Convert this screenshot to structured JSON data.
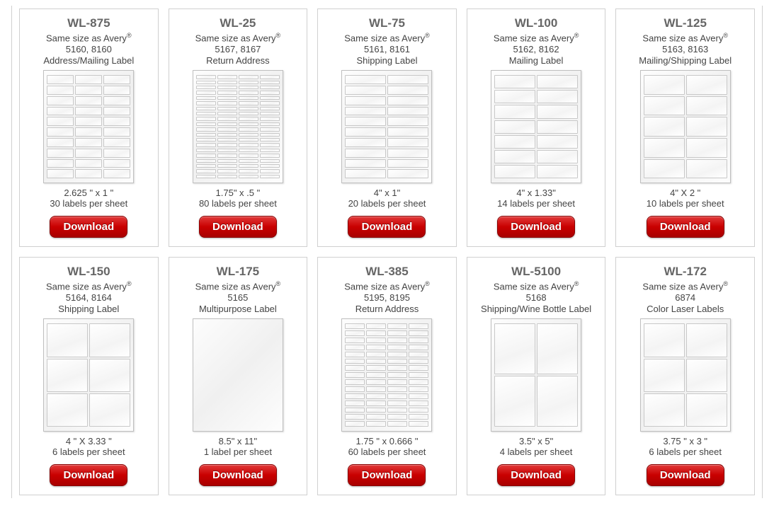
{
  "download_label": "Download",
  "same_size_prefix": "Same size as Avery",
  "products": [
    {
      "sku": "WL-875",
      "avery_codes": "5160, 8160",
      "type_label": "Address/Mailing Label",
      "dimensions": "2.625 \" x 1 \"",
      "per_sheet": "30 labels per sheet",
      "layout": {
        "cols": 3,
        "rows": 10
      }
    },
    {
      "sku": "WL-25",
      "avery_codes": "5167, 8167",
      "type_label": "Return Address",
      "dimensions": "1.75\" x .5 \"",
      "per_sheet": "80 labels per sheet",
      "layout": {
        "cols": 4,
        "rows": 20
      }
    },
    {
      "sku": "WL-75",
      "avery_codes": "5161, 8161",
      "type_label": "Shipping Label",
      "dimensions": "4\" x 1\"",
      "per_sheet": "20 labels per sheet",
      "layout": {
        "cols": 2,
        "rows": 10
      }
    },
    {
      "sku": "WL-100",
      "avery_codes": "5162, 8162",
      "type_label": "Mailing Label",
      "dimensions": "4\" x 1.33\"",
      "per_sheet": "14 labels per sheet",
      "layout": {
        "cols": 2,
        "rows": 7
      }
    },
    {
      "sku": "WL-125",
      "avery_codes": "5163, 8163",
      "type_label": "Mailing/Shipping Label",
      "dimensions": "4\" X 2 \"",
      "per_sheet": "10 labels per sheet",
      "layout": {
        "cols": 2,
        "rows": 5
      }
    },
    {
      "sku": "WL-150",
      "avery_codes": "5164, 8164",
      "type_label": "Shipping Label",
      "dimensions": "4 \" X 3.33 \"",
      "per_sheet": "6 labels per sheet",
      "layout": {
        "cols": 2,
        "rows": 3
      }
    },
    {
      "sku": "WL-175",
      "avery_codes": "5165",
      "type_label": "Multipurpose Label",
      "dimensions": "8.5\" x 11\"",
      "per_sheet": "1 label per sheet",
      "layout": {
        "cols": 1,
        "rows": 1
      }
    },
    {
      "sku": "WL-385",
      "avery_codes": "5195, 8195",
      "type_label": "Return Address",
      "dimensions": "1.75 \" x 0.666 \"",
      "per_sheet": "60 labels per sheet",
      "layout": {
        "cols": 4,
        "rows": 15
      }
    },
    {
      "sku": "WL-5100",
      "avery_codes": "5168",
      "type_label": "Shipping/Wine Bottle Label",
      "dimensions": "3.5\" x 5\"",
      "per_sheet": "4 labels per sheet",
      "layout": {
        "cols": 2,
        "rows": 2
      }
    },
    {
      "sku": "WL-172",
      "avery_codes": "6874",
      "type_label": "Color Laser Labels",
      "dimensions": "3.75 \" x 3 \"",
      "per_sheet": "6 labels per sheet",
      "layout": {
        "cols": 2,
        "rows": 3
      }
    }
  ]
}
